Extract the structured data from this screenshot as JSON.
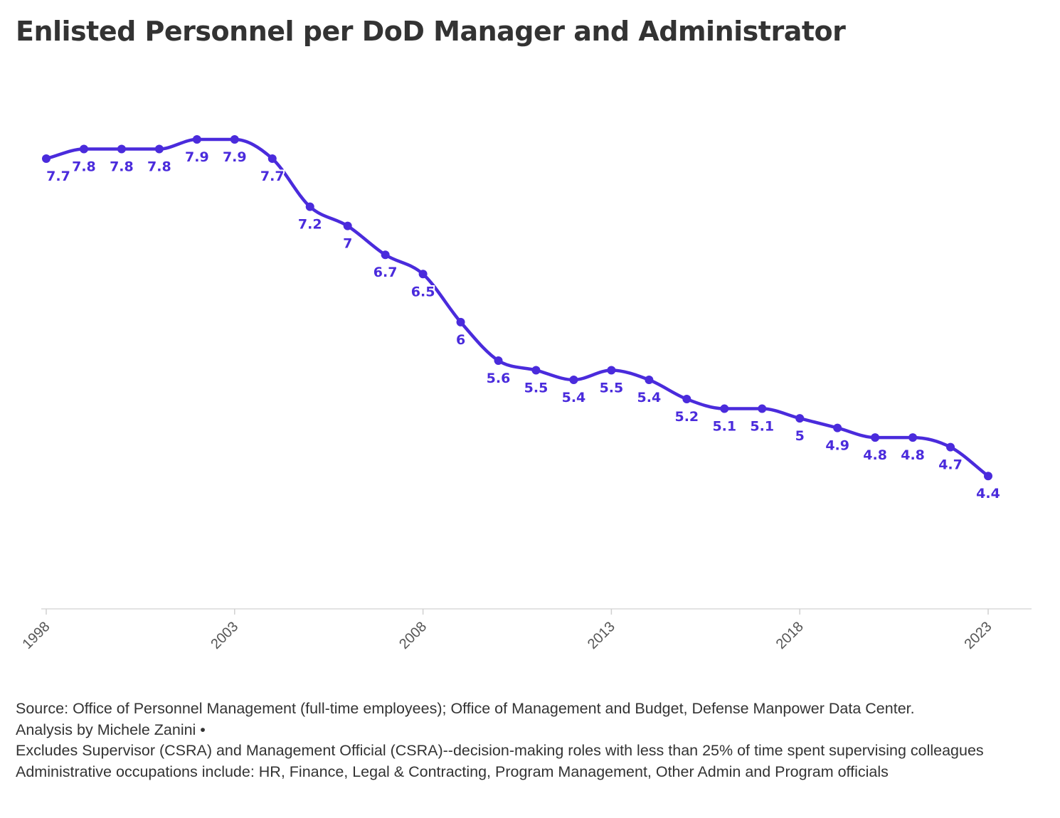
{
  "chart_data": {
    "type": "line",
    "title": "Enlisted Personnel per DoD Manager and Administrator",
    "x": [
      1998,
      1999,
      2000,
      2001,
      2002,
      2003,
      2004,
      2005,
      2006,
      2007,
      2008,
      2009,
      2010,
      2011,
      2012,
      2013,
      2014,
      2015,
      2016,
      2017,
      2018,
      2019,
      2020,
      2021,
      2022,
      2023
    ],
    "values": [
      7.7,
      7.8,
      7.8,
      7.8,
      7.9,
      7.9,
      7.7,
      7.2,
      7,
      6.7,
      6.5,
      6,
      5.6,
      5.5,
      5.4,
      5.5,
      5.4,
      5.2,
      5.1,
      5.1,
      5,
      4.9,
      4.8,
      4.8,
      4.7,
      4.4
    ],
    "labels": [
      "7.7",
      "7.8",
      "7.8",
      "7.8",
      "7.9",
      "7.9",
      "7.7",
      "7.2",
      "7",
      "6.7",
      "6.5",
      "6",
      "5.6",
      "5.5",
      "5.4",
      "5.5",
      "5.4",
      "5.2",
      "5.1",
      "5.1",
      "5",
      "4.9",
      "4.8",
      "4.8",
      "4.7",
      "4.4"
    ],
    "x_ticks": [
      "1998",
      "2003",
      "2008",
      "2013",
      "2018",
      "2023"
    ],
    "xlabel": "",
    "ylabel": "",
    "grid": false,
    "line_color": "#4a2bdc",
    "axis_color": "#e3e3e3"
  },
  "footer": {
    "line1": "Source: Office of Personnel Management (full-time employees); Office of Management and Budget, Defense Manpower Data Center.",
    "line2": "Analysis by Michele Zanini •",
    "line3": "Excludes Supervisor (CSRA) and Management Official (CSRA)--decision-making roles with less than 25% of time spent supervising colleagues",
    "line4": "Administrative occupations include: HR, Finance, Legal & Contracting, Program Management, Other Admin and Program officials"
  }
}
